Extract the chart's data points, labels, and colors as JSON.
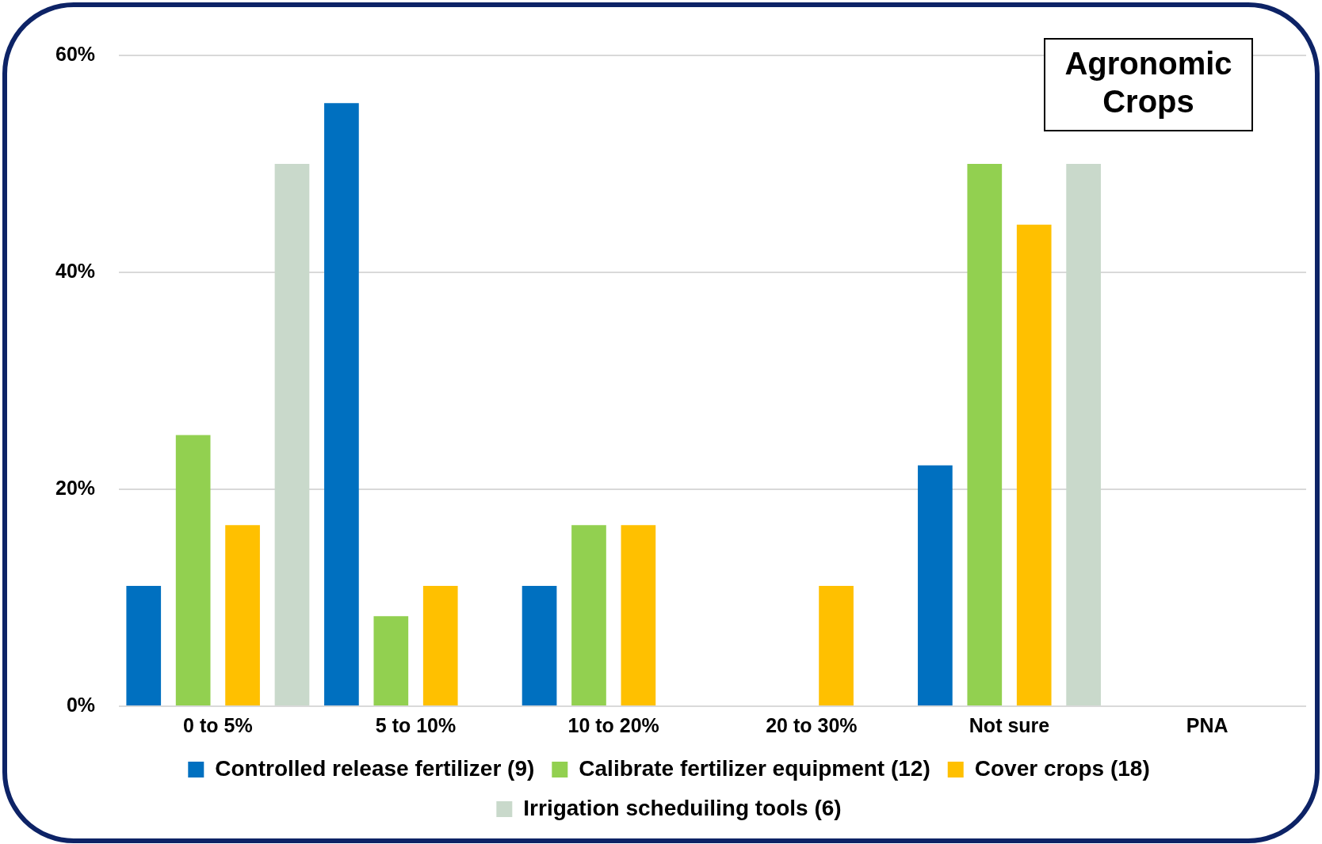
{
  "chart_data": {
    "type": "bar",
    "title": "Agronomic Crops",
    "categories": [
      "0 to 5%",
      "5 to 10%",
      "10 to 20%",
      "20 to 30%",
      "Not sure",
      "PNA"
    ],
    "series": [
      {
        "name": "Controlled release fertilizer (9)",
        "color": "#0070c0",
        "values": [
          11.1,
          55.6,
          11.1,
          0,
          22.2,
          0
        ]
      },
      {
        "name": "Calibrate fertilizer equipment (12)",
        "color": "#92d050",
        "values": [
          25,
          8.3,
          16.7,
          0,
          50,
          0
        ]
      },
      {
        "name": "Cover crops (18)",
        "color": "#ffc000",
        "values": [
          16.7,
          11.1,
          16.7,
          11.1,
          44.4,
          0
        ]
      },
      {
        "name": "Irrigation scheduiling tools (6)",
        "color": "#c9d9cb",
        "values": [
          50,
          0,
          0,
          0,
          50,
          0
        ]
      }
    ],
    "ylim": [
      0,
      60
    ],
    "yticks": [
      {
        "value": 0,
        "label": "0%"
      },
      {
        "value": 20,
        "label": "20%"
      },
      {
        "value": 40,
        "label": "40%"
      },
      {
        "value": 60,
        "label": "60%"
      }
    ],
    "grid": "y",
    "legend": "bottom"
  }
}
